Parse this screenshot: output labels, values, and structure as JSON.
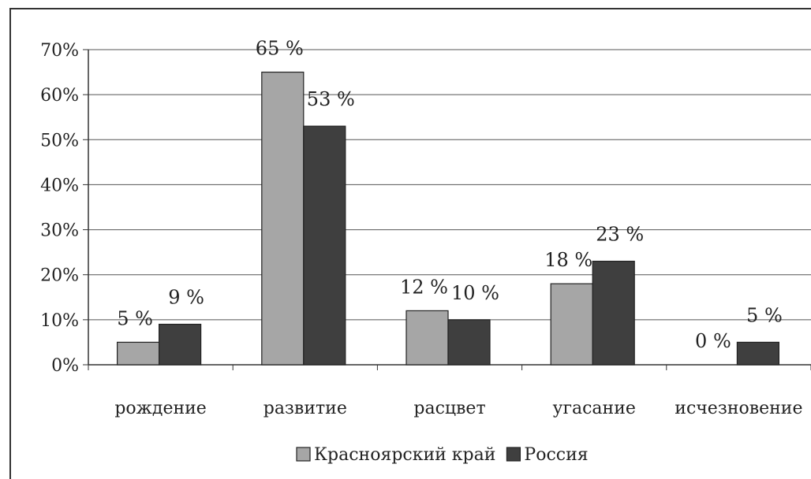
{
  "chart_data": {
    "type": "bar",
    "categories": [
      "рождение",
      "развитие",
      "расцвет",
      "угасание",
      "исчезновение"
    ],
    "series": [
      {
        "name": "Красноярский край",
        "values": [
          5,
          65,
          12,
          18,
          0
        ],
        "color": "#a6a6a6"
      },
      {
        "name": "Россия",
        "values": [
          9,
          53,
          10,
          23,
          5
        ],
        "color": "#3f3f3f"
      }
    ],
    "data_labels": [
      [
        "5 %",
        "65 %",
        "12 %",
        "18 %",
        "0 %"
      ],
      [
        "9 %",
        "53 %",
        "10 %",
        "23 %",
        "5 %"
      ]
    ],
    "y_ticks": [
      "0%",
      "10%",
      "20%",
      "30%",
      "40%",
      "50%",
      "60%",
      "70%"
    ],
    "ylim": [
      0,
      70
    ],
    "grid": true,
    "legend_position": "bottom",
    "title": "",
    "xlabel": "",
    "ylabel": ""
  }
}
